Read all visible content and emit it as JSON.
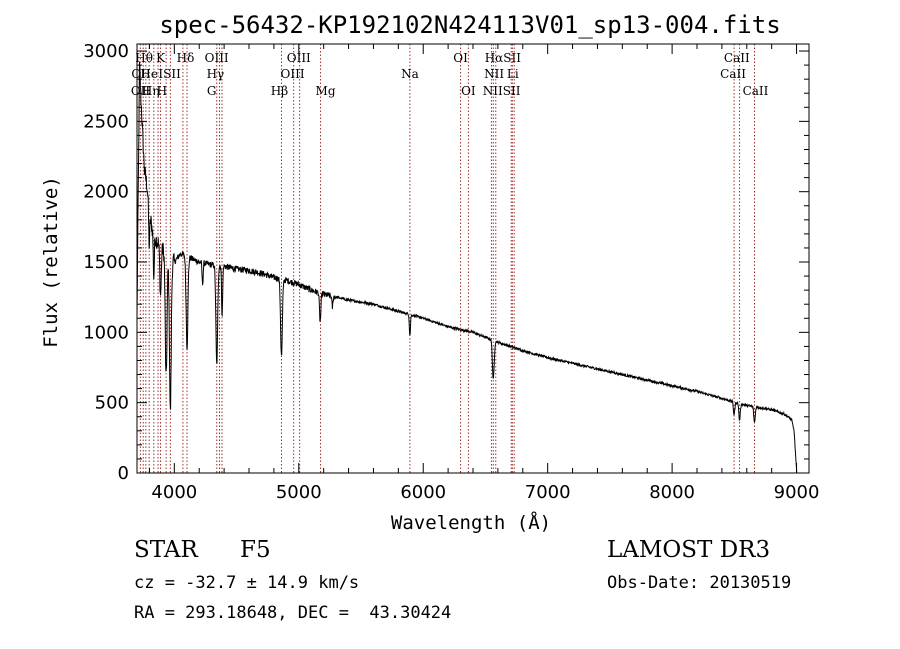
{
  "chart_data": {
    "type": "line",
    "title": "spec-56432-KP192102N424113V01_sp13-004.fits",
    "xlabel": "Wavelength (Å)",
    "ylabel": "Flux (relative)",
    "xlim": [
      3700,
      9100
    ],
    "ylim": [
      0,
      3050
    ],
    "xticks": [
      4000,
      5000,
      6000,
      7000,
      8000,
      9000
    ],
    "yticks": [
      0,
      500,
      1000,
      1500,
      2000,
      2500,
      3000
    ],
    "colors": {
      "spectrum": "#000000",
      "lines": "#a0302a",
      "axes": "#000000"
    },
    "continuum": [
      [
        3700,
        1100
      ],
      [
        3720,
        2900
      ],
      [
        3740,
        2500
      ],
      [
        3760,
        2150
      ],
      [
        3780,
        2050
      ],
      [
        3800,
        1850
      ],
      [
        3830,
        1700
      ],
      [
        3860,
        1650
      ],
      [
        3900,
        1600
      ],
      [
        3950,
        1550
      ],
      [
        4000,
        1500
      ],
      [
        4050,
        1560
      ],
      [
        4100,
        1540
      ],
      [
        4200,
        1500
      ],
      [
        4300,
        1480
      ],
      [
        4400,
        1470
      ],
      [
        4500,
        1450
      ],
      [
        4600,
        1440
      ],
      [
        4700,
        1420
      ],
      [
        4800,
        1390
      ],
      [
        4900,
        1370
      ],
      [
        5000,
        1340
      ],
      [
        5100,
        1300
      ],
      [
        5200,
        1270
      ],
      [
        5400,
        1230
      ],
      [
        5600,
        1200
      ],
      [
        5800,
        1150
      ],
      [
        6000,
        1100
      ],
      [
        6200,
        1040
      ],
      [
        6400,
        1000
      ],
      [
        6600,
        930
      ],
      [
        6800,
        870
      ],
      [
        7000,
        820
      ],
      [
        7200,
        780
      ],
      [
        7400,
        740
      ],
      [
        7600,
        700
      ],
      [
        7800,
        660
      ],
      [
        8000,
        620
      ],
      [
        8200,
        580
      ],
      [
        8400,
        530
      ],
      [
        8600,
        480
      ],
      [
        8800,
        450
      ],
      [
        8900,
        420
      ],
      [
        8960,
        380
      ],
      [
        8980,
        300
      ],
      [
        9000,
        20
      ]
    ],
    "absorptions": [
      {
        "x": 3934,
        "depth": 900,
        "width": 10
      },
      {
        "x": 3968,
        "depth": 1100,
        "width": 10
      },
      {
        "x": 3889,
        "depth": 350,
        "width": 8
      },
      {
        "x": 3835,
        "depth": 300,
        "width": 6
      },
      {
        "x": 3798,
        "depth": 250,
        "width": 6
      },
      {
        "x": 4102,
        "depth": 650,
        "width": 10
      },
      {
        "x": 4227,
        "depth": 150,
        "width": 6
      },
      {
        "x": 4341,
        "depth": 700,
        "width": 10
      },
      {
        "x": 4384,
        "depth": 350,
        "width": 6
      },
      {
        "x": 4861,
        "depth": 550,
        "width": 10
      },
      {
        "x": 5172,
        "depth": 200,
        "width": 8
      },
      {
        "x": 5270,
        "depth": 80,
        "width": 6
      },
      {
        "x": 5893,
        "depth": 150,
        "width": 6
      },
      {
        "x": 6563,
        "depth": 280,
        "width": 10
      },
      {
        "x": 8498,
        "depth": 90,
        "width": 8
      },
      {
        "x": 8542,
        "depth": 120,
        "width": 8
      },
      {
        "x": 8662,
        "depth": 110,
        "width": 8
      }
    ],
    "line_markers": [
      3727,
      3750,
      3771,
      3798,
      3835,
      3869,
      3889,
      3934,
      3968,
      4069,
      4102,
      4341,
      4363,
      4383,
      4861,
      4959,
      5007,
      5175,
      5893,
      6300,
      6363,
      6548,
      6563,
      6583,
      6707,
      6716,
      6731,
      8498,
      8542,
      8662
    ],
    "line_labels": [
      {
        "text": "Hθ",
        "x": 3757,
        "row": 0
      },
      {
        "text": "K",
        "x": 3890,
        "row": 0
      },
      {
        "text": "Hδ",
        "x": 4090,
        "row": 0
      },
      {
        "text": "OII",
        "x": 3732,
        "row": 1
      },
      {
        "text": "He",
        "x": 3798,
        "row": 1
      },
      {
        "text": "ISII",
        "x": 3962,
        "row": 1
      },
      {
        "text": "OII",
        "x": 3728,
        "row": 2
      },
      {
        "text": "Hη",
        "x": 3810,
        "row": 2
      },
      {
        "text": "H",
        "x": 3900,
        "row": 2
      },
      {
        "text": "OIII",
        "x": 4340,
        "row": 0
      },
      {
        "text": "Hγ",
        "x": 4330,
        "row": 1
      },
      {
        "text": "G",
        "x": 4300,
        "row": 2
      },
      {
        "text": "OIII",
        "x": 5000,
        "row": 0
      },
      {
        "text": "OIII",
        "x": 4950,
        "row": 1
      },
      {
        "text": "Hβ",
        "x": 4845,
        "row": 2
      },
      {
        "text": "Mg",
        "x": 5215,
        "row": 2
      },
      {
        "text": "Na",
        "x": 5893,
        "row": 1
      },
      {
        "text": "OI",
        "x": 6300,
        "row": 0
      },
      {
        "text": "OI",
        "x": 6363,
        "row": 2
      },
      {
        "text": "HαSII",
        "x": 6640,
        "row": 0
      },
      {
        "text": "NII",
        "x": 6570,
        "row": 1
      },
      {
        "text": "Li",
        "x": 6720,
        "row": 1
      },
      {
        "text": "NIISII",
        "x": 6630,
        "row": 2
      },
      {
        "text": "CaII",
        "x": 8520,
        "row": 0
      },
      {
        "text": "CaII",
        "x": 8490,
        "row": 1
      },
      {
        "text": "CaII",
        "x": 8670,
        "row": 2
      }
    ]
  },
  "info": {
    "object_class": "STAR",
    "subclass": "F5",
    "survey": "LAMOST DR3",
    "redshift": "cz = -32.7 ± 14.9 km/s",
    "obs_date": "Obs-Date: 20130519",
    "coords": "RA = 293.18648, DEC =  43.30424"
  }
}
